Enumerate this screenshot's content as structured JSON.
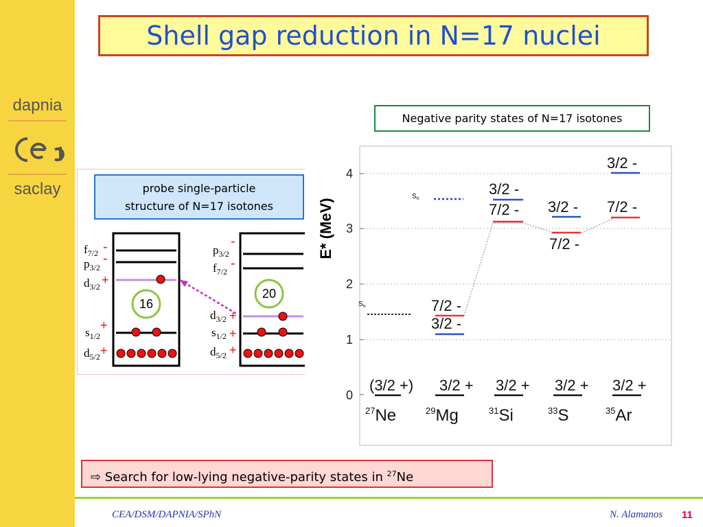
{
  "slide": {
    "title": "Shell gap reduction in N=17 nuclei",
    "sidebar": {
      "logo_top": "dapnia",
      "logo_bottom": "saclay"
    },
    "panel_left": {
      "caption_line1": "probe single-particle",
      "caption_line2": "structure of N=17 isotones",
      "scheme_a": {
        "label": "16",
        "levels": [
          {
            "l": "f",
            "j": "7/2",
            "p": "-"
          },
          {
            "l": "p",
            "j": "3/2",
            "p": "-"
          },
          {
            "l": "d",
            "j": "3/2",
            "p": "+"
          },
          {
            "l": "s",
            "j": "1/2",
            "p": "+"
          },
          {
            "l": "d",
            "j": "5/2",
            "p": "+"
          }
        ]
      },
      "scheme_b": {
        "label": "20",
        "levels": [
          {
            "l": "p",
            "j": "3/2",
            "p": "-"
          },
          {
            "l": "f",
            "j": "7/2",
            "p": "-"
          },
          {
            "l": "d",
            "j": "3/2",
            "p": "+"
          },
          {
            "l": "s",
            "j": "1/2",
            "p": "+"
          },
          {
            "l": "d",
            "j": "5/2",
            "p": "+"
          }
        ]
      }
    },
    "panel_right": {
      "caption": "Negative parity states of N=17 isotones",
      "y_axis_label": "E* (MeV)",
      "y_ticks": [
        "0",
        "1",
        "2",
        "3",
        "4"
      ],
      "sn_label": "S",
      "sn_sub": "n",
      "nuclei": [
        {
          "mass": "27",
          "sym": "Ne",
          "gs": "(3/2 +)"
        },
        {
          "mass": "29",
          "sym": "Mg",
          "gs": "3/2 +"
        },
        {
          "mass": "31",
          "sym": "Si",
          "gs": "3/2 +"
        },
        {
          "mass": "33",
          "sym": "S",
          "gs": "3/2 +"
        },
        {
          "mass": "35",
          "sym": "Ar",
          "gs": "3/2 +"
        }
      ],
      "state_labels": {
        "mg_72": "7/2 -",
        "mg_32": "3/2 -",
        "si_32": "3/2 -",
        "si_72": "7/2 -",
        "s_32": "3/2 -",
        "s_72": "7/2 -",
        "ar_32": "3/2 -",
        "ar_72": "7/2 -"
      }
    },
    "note_prefix": "⇨ Search for low-lying negative-parity states in ",
    "note_sup": "27",
    "note_el": "Ne",
    "footer_left": "CEA/DSM/DAPNIA/SPhN",
    "footer_right": "N. Alamanos",
    "page": "11",
    "colors": {
      "title": "#1f4fd1",
      "red_level": "#e33",
      "blue_level": "#2454c4"
    }
  }
}
